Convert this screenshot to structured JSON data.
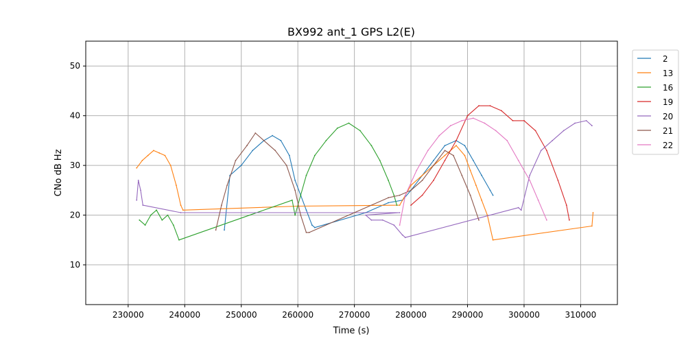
{
  "chart_data": {
    "type": "line",
    "title": "BX992 ant_1 GPS L2(E)",
    "xlabel": "Time (s)",
    "ylabel": "CNo dB Hz",
    "xlim": [
      222500,
      316500
    ],
    "ylim": [
      2,
      55
    ],
    "xticks": [
      230000,
      240000,
      250000,
      260000,
      270000,
      280000,
      290000,
      300000,
      310000
    ],
    "yticks": [
      10,
      20,
      30,
      40,
      50
    ],
    "grid": true,
    "legend_position": "outside-top-right",
    "series": [
      {
        "name": "2",
        "color": "#1f77b4",
        "x": [
          247000,
          248000,
          250000,
          252000,
          254000,
          255500,
          257000,
          258500,
          259500,
          260500,
          261500,
          262500,
          263000,
          272000,
          276000,
          278500,
          280000,
          282000,
          284000,
          286000,
          288000,
          289500,
          291000,
          292500,
          294000,
          294500
        ],
        "y": [
          17,
          28,
          30,
          33,
          35,
          36,
          35,
          32,
          27,
          24,
          21,
          18,
          17.5,
          20.5,
          22.5,
          23,
          25,
          28,
          31,
          34,
          35,
          34,
          31,
          28,
          25,
          24
        ]
      },
      {
        "name": "13",
        "color": "#ff7f0e",
        "x": [
          231500,
          232500,
          233500,
          234500,
          235500,
          236500,
          237500,
          238500,
          239300,
          239700,
          260000,
          278000,
          280000,
          282000,
          284000,
          286000,
          288000,
          289500,
          290500,
          291500,
          292500,
          293500,
          294500,
          312000,
          312200
        ],
        "y": [
          29.5,
          31,
          32,
          33,
          32.5,
          32,
          30,
          26,
          22,
          21,
          21.8,
          22,
          26,
          28,
          30,
          32,
          34,
          32,
          29,
          26,
          23,
          20,
          15,
          17.8,
          20.5
        ]
      },
      {
        "name": "16",
        "color": "#2ca02c",
        "x": [
          232000,
          233000,
          234000,
          235000,
          236000,
          237000,
          238000,
          239000,
          259000,
          259500,
          260500,
          261500,
          263000,
          265000,
          267000,
          269000,
          271000,
          273000,
          274500,
          276000,
          277000,
          277500
        ],
        "y": [
          19,
          18,
          20,
          21,
          19,
          20,
          18,
          15,
          23,
          20,
          24,
          28,
          32,
          35,
          37.5,
          38.5,
          37,
          34,
          31,
          27,
          24,
          22
        ]
      },
      {
        "name": "19",
        "color": "#d62728",
        "x": [
          280000,
          282000,
          284000,
          286000,
          288000,
          290000,
          292000,
          294000,
          296000,
          298000,
          300000,
          302000,
          304000,
          306000,
          307500,
          308000
        ],
        "y": [
          22,
          24,
          27,
          31,
          35,
          40,
          42,
          42,
          41,
          39,
          39,
          37,
          33,
          27,
          22,
          19
        ]
      },
      {
        "name": "20",
        "color": "#9467bd",
        "x": [
          231500,
          231800,
          232200,
          232600,
          239300,
          278000,
          272000,
          273000,
          275000,
          277000,
          278500,
          279000,
          299000,
          299500,
          301000,
          303000,
          305000,
          307000,
          309000,
          311000,
          312000
        ],
        "y": [
          23,
          27,
          25,
          22,
          20.5,
          20.5,
          20,
          19,
          19,
          18,
          16,
          15.5,
          21.5,
          21,
          28,
          33,
          35,
          37,
          38.5,
          39,
          38
        ]
      },
      {
        "name": "21",
        "color": "#8c564b",
        "x": [
          245500,
          246500,
          247500,
          249000,
          251000,
          252500,
          254000,
          256000,
          258000,
          259500,
          260500,
          261500,
          262000,
          276000,
          278000,
          280000,
          282000,
          284000,
          286000,
          287500,
          289000,
          290500,
          292000
        ],
        "y": [
          17,
          22,
          26,
          31,
          34,
          36.5,
          35,
          33,
          30,
          25,
          20,
          16.5,
          16.5,
          23.5,
          24,
          25,
          27,
          30,
          33,
          32,
          28,
          24,
          19
        ]
      },
      {
        "name": "22",
        "color": "#e377c2",
        "x": [
          278000,
          279000,
          281000,
          283000,
          285000,
          287000,
          289000,
          291000,
          293000,
          295000,
          297000,
          299000,
          301000,
          302500,
          304000
        ],
        "y": [
          18,
          24,
          29,
          33,
          36,
          38,
          39,
          39.5,
          38.5,
          37,
          35,
          31,
          27,
          23,
          19
        ]
      }
    ]
  }
}
